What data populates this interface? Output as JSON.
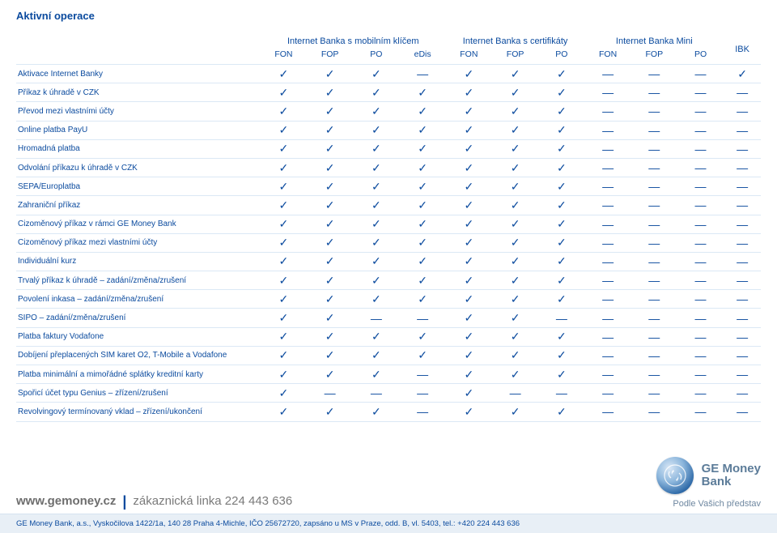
{
  "title": "Aktivní operace",
  "groups": [
    {
      "label": "Internet Banka s mobilním klíčem",
      "subs": [
        "FON",
        "FOP",
        "PO",
        "eDis"
      ]
    },
    {
      "label": "Internet Banka s certifikáty",
      "subs": [
        "FON",
        "FOP",
        "PO"
      ]
    },
    {
      "label": "Internet Banka Mini",
      "subs": [
        "FON",
        "FOP",
        "PO"
      ]
    }
  ],
  "ibk_label": "IBK",
  "check_glyph": "✓",
  "dash_glyph": "—",
  "rows": [
    {
      "label": "Aktivace Internet Banky",
      "cells": [
        1,
        1,
        1,
        0,
        1,
        1,
        1,
        0,
        0,
        0,
        1
      ]
    },
    {
      "label": "Příkaz k úhradě v CZK",
      "cells": [
        1,
        1,
        1,
        1,
        1,
        1,
        1,
        0,
        0,
        0,
        0
      ]
    },
    {
      "label": "Převod mezi vlastními účty",
      "cells": [
        1,
        1,
        1,
        1,
        1,
        1,
        1,
        0,
        0,
        0,
        0
      ]
    },
    {
      "label": "Online platba PayU",
      "cells": [
        1,
        1,
        1,
        1,
        1,
        1,
        1,
        0,
        0,
        0,
        0
      ]
    },
    {
      "label": "Hromadná platba",
      "cells": [
        1,
        1,
        1,
        1,
        1,
        1,
        1,
        0,
        0,
        0,
        0
      ]
    },
    {
      "label": "Odvolání příkazu k úhradě v CZK",
      "cells": [
        1,
        1,
        1,
        1,
        1,
        1,
        1,
        0,
        0,
        0,
        0
      ]
    },
    {
      "label": "SEPA/Europlatba",
      "cells": [
        1,
        1,
        1,
        1,
        1,
        1,
        1,
        0,
        0,
        0,
        0
      ]
    },
    {
      "label": "Zahraniční příkaz",
      "cells": [
        1,
        1,
        1,
        1,
        1,
        1,
        1,
        0,
        0,
        0,
        0
      ]
    },
    {
      "label": "Cizoměnový příkaz v rámci GE Money Bank",
      "cells": [
        1,
        1,
        1,
        1,
        1,
        1,
        1,
        0,
        0,
        0,
        0
      ]
    },
    {
      "label": "Cizoměnový příkaz mezi vlastními účty",
      "cells": [
        1,
        1,
        1,
        1,
        1,
        1,
        1,
        0,
        0,
        0,
        0
      ]
    },
    {
      "label": "Individuální kurz",
      "cells": [
        1,
        1,
        1,
        1,
        1,
        1,
        1,
        0,
        0,
        0,
        0
      ]
    },
    {
      "label": "Trvalý příkaz k úhradě – zadání/změna/zrušení",
      "cells": [
        1,
        1,
        1,
        1,
        1,
        1,
        1,
        0,
        0,
        0,
        0
      ]
    },
    {
      "label": "Povolení inkasa – zadání/změna/zrušení",
      "cells": [
        1,
        1,
        1,
        1,
        1,
        1,
        1,
        0,
        0,
        0,
        0
      ]
    },
    {
      "label": "SIPO – zadání/změna/zrušení",
      "cells": [
        1,
        1,
        0,
        0,
        1,
        1,
        0,
        0,
        0,
        0,
        0
      ]
    },
    {
      "label": "Platba faktury Vodafone",
      "cells": [
        1,
        1,
        1,
        1,
        1,
        1,
        1,
        0,
        0,
        0,
        0
      ]
    },
    {
      "label": "Dobíjení přeplacených SIM karet O2, T-Mobile a Vodafone",
      "cells": [
        1,
        1,
        1,
        1,
        1,
        1,
        1,
        0,
        0,
        0,
        0
      ]
    },
    {
      "label": "Platba minimální a mimořádné splátky kreditní karty",
      "cells": [
        1,
        1,
        1,
        0,
        1,
        1,
        1,
        0,
        0,
        0,
        0
      ]
    },
    {
      "label": "Spořicí účet typu Genius – zřízení/zrušení",
      "cells": [
        1,
        0,
        0,
        0,
        1,
        0,
        0,
        0,
        0,
        0,
        0
      ]
    },
    {
      "label": "Revolvingový termínovaný vklad – zřízení/ukončení",
      "cells": [
        1,
        1,
        1,
        0,
        1,
        1,
        1,
        0,
        0,
        0,
        0
      ]
    }
  ],
  "footer": {
    "url": "www.gemoney.cz",
    "hotline": "zákaznická linka 224 443 636",
    "brand_line1": "GE Money",
    "brand_line2": "Bank",
    "tagline": "Podle Vašich představ",
    "legal": "GE Money Bank, a.s., Vyskočilova 1422/1a, 140 28 Praha 4-Michle, IČO 25672720, zapsáno u MS v Praze, odd. B, vl. 5403, tel.: +420 224 443 636"
  },
  "colors": {
    "primary": "#0a4a9e",
    "row_border": "#dbe8f5",
    "footer_bg": "#e8eff6",
    "muted": "#6e6e6e"
  }
}
